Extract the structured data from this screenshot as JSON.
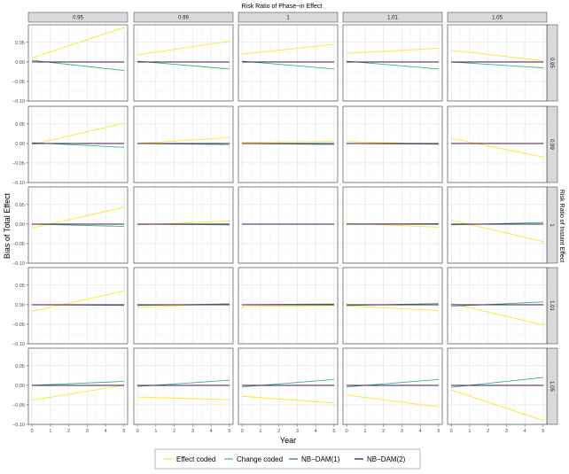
{
  "chart_data": {
    "type": "line",
    "facet_col_title": "Risk Ratio of Phase−in Effect",
    "facet_row_title": "Risk Ratio of Instant Effect",
    "xlabel": "Year",
    "ylabel": "Bias of Total Effect",
    "col_labels": [
      "0.95",
      "0.99",
      "1",
      "1.01",
      "1.05"
    ],
    "row_labels": [
      "0.95",
      "0.99",
      "1",
      "1.01",
      "1.05"
    ],
    "x_ticks": [
      "0",
      "1",
      "2",
      "3",
      "4",
      "5"
    ],
    "y_ticks": [
      "−0.10",
      "−0.05",
      "0.00",
      "0.05"
    ],
    "xlim": [
      -0.2,
      5.2
    ],
    "ylim": [
      -0.1,
      0.095
    ],
    "grid": true,
    "legend_position": "bottom",
    "series": [
      {
        "name": "Effect coded",
        "color": "#FDE725"
      },
      {
        "name": "Change coded",
        "color": "#35B779"
      },
      {
        "name": "NB−DAM(1)",
        "color": "#31688E"
      },
      {
        "name": "NB−DAM(2)",
        "color": "#440154"
      }
    ],
    "panels": [
      [
        {
          "Effect coded": [
            0.01,
            0.088
          ],
          "Change coded": [
            0.004,
            -0.022
          ],
          "NB−DAM(1)": [
            0.0,
            0.0
          ],
          "NB−DAM(2)": [
            0.0,
            0.0
          ]
        },
        {
          "Effect coded": [
            0.018,
            0.053
          ],
          "Change coded": [
            0.002,
            -0.018
          ],
          "NB−DAM(1)": [
            0.0,
            0.0
          ],
          "NB−DAM(2)": [
            0.0,
            0.0
          ]
        },
        {
          "Effect coded": [
            0.02,
            0.045
          ],
          "Change coded": [
            0.002,
            -0.018
          ],
          "NB−DAM(1)": [
            0.0,
            0.0
          ],
          "NB−DAM(2)": [
            0.0,
            0.0
          ]
        },
        {
          "Effect coded": [
            0.022,
            0.035
          ],
          "Change coded": [
            0.002,
            -0.018
          ],
          "NB−DAM(1)": [
            0.0,
            0.0
          ],
          "NB−DAM(2)": [
            0.0,
            0.0
          ]
        },
        {
          "Effect coded": [
            0.03,
            0.003
          ],
          "Change coded": [
            0.0,
            -0.015
          ],
          "NB−DAM(1)": [
            0.0,
            0.0
          ],
          "NB−DAM(2)": [
            0.0,
            0.0
          ]
        }
      ],
      [
        {
          "Effect coded": [
            -0.003,
            0.052
          ],
          "Change coded": [
            0.002,
            -0.01
          ],
          "NB−DAM(1)": [
            0.0,
            0.0
          ],
          "NB−DAM(2)": [
            0.0,
            0.0
          ]
        },
        {
          "Effect coded": [
            0.0,
            0.015
          ],
          "Change coded": [
            0.0,
            -0.003
          ],
          "NB−DAM(1)": [
            0.0,
            0.0
          ],
          "NB−DAM(2)": [
            0.0,
            0.0
          ]
        },
        {
          "Effect coded": [
            0.003,
            0.005
          ],
          "Change coded": [
            0.0,
            -0.003
          ],
          "NB−DAM(1)": [
            0.0,
            0.0
          ],
          "NB−DAM(2)": [
            0.0,
            0.0
          ]
        },
        {
          "Effect coded": [
            0.005,
            -0.002
          ],
          "Change coded": [
            0.0,
            -0.002
          ],
          "NB−DAM(1)": [
            0.0,
            0.0
          ],
          "NB−DAM(2)": [
            0.0,
            0.0
          ]
        },
        {
          "Effect coded": [
            0.013,
            -0.035
          ],
          "Change coded": [
            0.0,
            0.0
          ],
          "NB−DAM(1)": [
            0.0,
            0.0
          ],
          "NB−DAM(2)": [
            0.0,
            0.0
          ]
        }
      ],
      [
        {
          "Effect coded": [
            -0.01,
            0.043
          ],
          "Change coded": [
            0.0,
            -0.006
          ],
          "NB−DAM(1)": [
            0.0,
            0.0
          ],
          "NB−DAM(2)": [
            0.0,
            0.0
          ]
        },
        {
          "Effect coded": [
            -0.002,
            0.008
          ],
          "Change coded": [
            0.0,
            -0.002
          ],
          "NB−DAM(1)": [
            0.0,
            0.0
          ],
          "NB−DAM(2)": [
            0.0,
            0.0
          ]
        },
        {
          "Effect coded": [
            0.0,
            0.0
          ],
          "Change coded": [
            0.0,
            0.0
          ],
          "NB−DAM(1)": [
            0.0,
            0.0
          ],
          "NB−DAM(2)": [
            0.0,
            0.0
          ]
        },
        {
          "Effect coded": [
            0.002,
            -0.008
          ],
          "Change coded": [
            0.0,
            0.001
          ],
          "NB−DAM(1)": [
            0.0,
            0.0
          ],
          "NB−DAM(2)": [
            0.0,
            0.0
          ]
        },
        {
          "Effect coded": [
            0.01,
            -0.045
          ],
          "Change coded": [
            -0.002,
            0.004
          ],
          "NB−DAM(1)": [
            0.0,
            0.0
          ],
          "NB−DAM(2)": [
            0.0,
            0.0
          ]
        }
      ],
      [
        {
          "Effect coded": [
            -0.017,
            0.035
          ],
          "Change coded": [
            0.0,
            -0.002
          ],
          "NB−DAM(1)": [
            0.0,
            0.0
          ],
          "NB−DAM(2)": [
            0.0,
            0.0
          ]
        },
        {
          "Effect coded": [
            -0.007,
            0.003
          ],
          "Change coded": [
            -0.002,
            0.002
          ],
          "NB−DAM(1)": [
            0.0,
            0.0
          ],
          "NB−DAM(2)": [
            0.0,
            0.0
          ]
        },
        {
          "Effect coded": [
            -0.005,
            -0.002
          ],
          "Change coded": [
            0.0,
            0.002
          ],
          "NB−DAM(1)": [
            0.0,
            0.0
          ],
          "NB−DAM(2)": [
            0.0,
            0.0
          ]
        },
        {
          "Effect coded": [
            -0.003,
            -0.015
          ],
          "Change coded": [
            -0.002,
            0.003
          ],
          "NB−DAM(1)": [
            0.0,
            0.0
          ],
          "NB−DAM(2)": [
            0.0,
            0.0
          ]
        },
        {
          "Effect coded": [
            0.003,
            -0.052
          ],
          "Change coded": [
            -0.004,
            0.007
          ],
          "NB−DAM(1)": [
            0.0,
            0.0
          ],
          "NB−DAM(2)": [
            0.0,
            0.0
          ]
        }
      ],
      [
        {
          "Effect coded": [
            -0.038,
            0.0
          ],
          "Change coded": [
            0.0,
            0.01
          ],
          "NB−DAM(1)": [
            0.0,
            0.0
          ],
          "NB−DAM(2)": [
            0.0,
            0.0
          ]
        },
        {
          "Effect coded": [
            -0.03,
            -0.037
          ],
          "Change coded": [
            -0.003,
            0.013
          ],
          "NB−DAM(1)": [
            0.0,
            0.0
          ],
          "NB−DAM(2)": [
            0.0,
            0.0
          ]
        },
        {
          "Effect coded": [
            -0.028,
            -0.045
          ],
          "Change coded": [
            -0.004,
            0.015
          ],
          "NB−DAM(1)": [
            0.0,
            0.0
          ],
          "NB−DAM(2)": [
            0.0,
            0.0
          ]
        },
        {
          "Effect coded": [
            -0.025,
            -0.055
          ],
          "Change coded": [
            -0.004,
            0.015
          ],
          "NB−DAM(1)": [
            0.0,
            0.0
          ],
          "NB−DAM(2)": [
            0.0,
            0.0
          ]
        },
        {
          "Effect coded": [
            -0.012,
            -0.09
          ],
          "Change coded": [
            -0.005,
            0.02
          ],
          "NB−DAM(1)": [
            0.0,
            0.0
          ],
          "NB−DAM(2)": [
            0.0,
            0.0
          ]
        }
      ]
    ]
  }
}
